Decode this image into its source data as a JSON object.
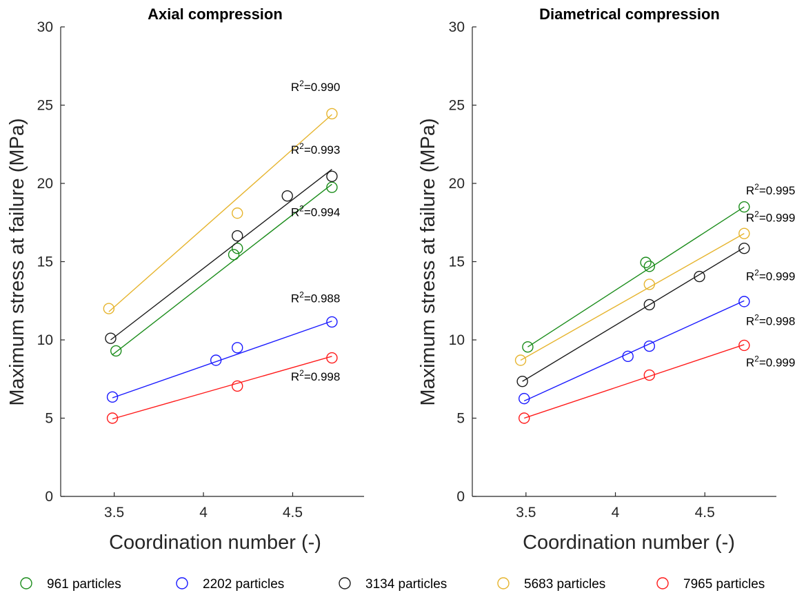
{
  "chart_data": [
    {
      "type": "scatter",
      "title": "Axial compression",
      "xlabel": "Coordination number (-)",
      "ylabel": "Maximum stress at failure (MPa)",
      "xlim": [
        3.2,
        4.9
      ],
      "ylim": [
        0,
        30
      ],
      "xticks": [
        3.5,
        4,
        4.5
      ],
      "xtick_labels": [
        "3.5",
        "4",
        "4.5"
      ],
      "yticks": [
        0,
        5,
        10,
        15,
        20,
        25,
        30
      ],
      "ytick_labels": [
        "0",
        "5",
        "10",
        "15",
        "20",
        "25",
        "30"
      ],
      "grid": false,
      "series": [
        {
          "name": "961 particles",
          "color": "#1a8c1a",
          "points": [
            [
              3.51,
              9.3
            ],
            [
              4.17,
              15.45
            ],
            [
              4.19,
              15.85
            ],
            [
              4.72,
              19.75
            ]
          ],
          "fit": [
            [
              3.49,
              9.05
            ],
            [
              4.72,
              19.95
            ]
          ]
        },
        {
          "name": "2202 particles",
          "color": "#1a1aff",
          "points": [
            [
              3.49,
              6.35
            ],
            [
              4.07,
              8.7
            ],
            [
              4.19,
              9.5
            ],
            [
              4.72,
              11.15
            ]
          ],
          "fit": [
            [
              3.49,
              6.3
            ],
            [
              4.72,
              11.2
            ]
          ]
        },
        {
          "name": "3134 particles",
          "color": "#1a1a1a",
          "points": [
            [
              3.48,
              10.1
            ],
            [
              4.19,
              16.65
            ],
            [
              4.47,
              19.2
            ],
            [
              4.72,
              20.45
            ]
          ],
          "fit": [
            [
              3.48,
              10.0
            ],
            [
              4.72,
              20.9
            ]
          ]
        },
        {
          "name": "5683 particles",
          "color": "#e6b42d",
          "points": [
            [
              3.47,
              12.0
            ],
            [
              4.19,
              18.1
            ],
            [
              4.72,
              24.45
            ]
          ],
          "fit": [
            [
              3.47,
              11.8
            ],
            [
              4.72,
              24.4
            ]
          ]
        },
        {
          "name": "7965 particles",
          "color": "#ff1a1a",
          "points": [
            [
              3.49,
              5.0
            ],
            [
              4.19,
              7.05
            ],
            [
              4.72,
              8.85
            ]
          ],
          "fit": [
            [
              3.49,
              4.95
            ],
            [
              4.72,
              8.95
            ]
          ]
        }
      ],
      "annotations": [
        {
          "text": "R",
          "sup": "2",
          "value": "=0.990",
          "x": 4.49,
          "y": 25.9
        },
        {
          "text": "R",
          "sup": "2",
          "value": "=0.993",
          "x": 4.49,
          "y": 21.9
        },
        {
          "text": "R",
          "sup": "2",
          "value": "=0.994",
          "x": 4.49,
          "y": 17.9
        },
        {
          "text": "R",
          "sup": "2",
          "value": "=0.988",
          "x": 4.49,
          "y": 12.4
        },
        {
          "text": "R",
          "sup": "2",
          "value": "=0.998",
          "x": 4.49,
          "y": 7.4
        }
      ]
    },
    {
      "type": "scatter",
      "title": "Diametrical compression",
      "xlabel": "Coordination number (-)",
      "ylabel": "Maximum stress at failure (MPa)",
      "xlim": [
        3.2,
        4.9
      ],
      "ylim": [
        0,
        30
      ],
      "xticks": [
        3.5,
        4,
        4.5
      ],
      "xtick_labels": [
        "3.5",
        "4",
        "4.5"
      ],
      "yticks": [
        0,
        5,
        10,
        15,
        20,
        25,
        30
      ],
      "ytick_labels": [
        "0",
        "5",
        "10",
        "15",
        "20",
        "25",
        "30"
      ],
      "grid": false,
      "series": [
        {
          "name": "961 particles",
          "color": "#1a8c1a",
          "points": [
            [
              3.51,
              9.55
            ],
            [
              4.17,
              14.95
            ],
            [
              4.19,
              14.7
            ],
            [
              4.72,
              18.5
            ]
          ],
          "fit": [
            [
              3.51,
              9.55
            ],
            [
              4.72,
              18.5
            ]
          ]
        },
        {
          "name": "2202 particles",
          "color": "#1a1aff",
          "points": [
            [
              3.49,
              6.25
            ],
            [
              4.07,
              8.95
            ],
            [
              4.19,
              9.6
            ],
            [
              4.72,
              12.45
            ]
          ],
          "fit": [
            [
              3.49,
              6.1
            ],
            [
              4.72,
              12.5
            ]
          ]
        },
        {
          "name": "3134 particles",
          "color": "#1a1a1a",
          "points": [
            [
              3.48,
              7.35
            ],
            [
              4.19,
              12.25
            ],
            [
              4.47,
              14.05
            ],
            [
              4.72,
              15.85
            ]
          ],
          "fit": [
            [
              3.48,
              7.35
            ],
            [
              4.72,
              15.9
            ]
          ]
        },
        {
          "name": "5683 particles",
          "color": "#e6b42d",
          "points": [
            [
              3.47,
              8.7
            ],
            [
              4.19,
              13.55
            ],
            [
              4.72,
              16.8
            ]
          ],
          "fit": [
            [
              3.47,
              8.7
            ],
            [
              4.72,
              16.8
            ]
          ]
        },
        {
          "name": "7965 particles",
          "color": "#ff1a1a",
          "points": [
            [
              3.49,
              5.0
            ],
            [
              4.19,
              7.75
            ],
            [
              4.72,
              9.65
            ]
          ],
          "fit": [
            [
              3.49,
              5.0
            ],
            [
              4.72,
              9.7
            ]
          ]
        }
      ],
      "annotations": [
        {
          "text": "R",
          "sup": "2",
          "value": "=0.995",
          "x": 4.73,
          "y": 19.3
        },
        {
          "text": "R",
          "sup": "2",
          "value": "=0.999",
          "x": 4.73,
          "y": 17.55
        },
        {
          "text": "R",
          "sup": "2",
          "value": "=0.999",
          "x": 4.73,
          "y": 13.8
        },
        {
          "text": "R",
          "sup": "2",
          "value": "=0.998",
          "x": 4.73,
          "y": 10.95
        },
        {
          "text": "R",
          "sup": "2",
          "value": "=0.999",
          "x": 4.73,
          "y": 8.3
        }
      ]
    }
  ],
  "legend": {
    "placement": "bottom",
    "entries": [
      {
        "label": "961 particles",
        "color": "#1a8c1a"
      },
      {
        "label": "2202 particles",
        "color": "#1a1aff"
      },
      {
        "label": "3134 particles",
        "color": "#1a1a1a"
      },
      {
        "label": "5683 particles",
        "color": "#e6b42d"
      },
      {
        "label": "7965 particles",
        "color": "#ff1a1a"
      }
    ]
  }
}
